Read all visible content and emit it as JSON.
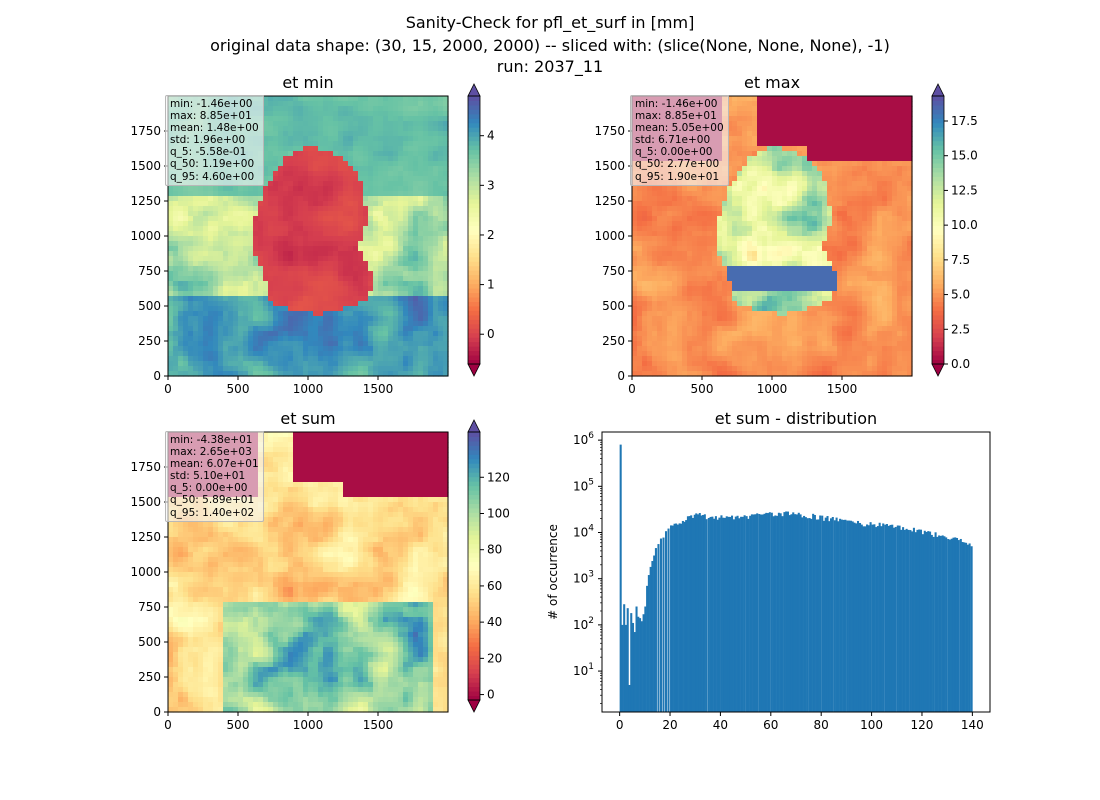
{
  "suptitle": {
    "line1": "Sanity-Check for pfl_et_surf in [mm]",
    "line2": "original data shape: (30, 15, 2000, 2000) -- sliced with: (slice(None, None, None), -1)",
    "line3": "run: 2037_11"
  },
  "colors": {
    "hist_bar": "#1f77b4",
    "spectral": [
      "#9e0142",
      "#d53e4f",
      "#f46d43",
      "#fdae61",
      "#fee08b",
      "#ffffbf",
      "#e6f598",
      "#abdda4",
      "#66c2a5",
      "#3288bd",
      "#5e4fa2"
    ],
    "ocean_tint": 0.82,
    "land_tint": 0.18
  },
  "chart_data": [
    {
      "type": "heatmap",
      "name": "et-min",
      "title": "et min",
      "xlim": [
        0,
        2000
      ],
      "ylim": [
        0,
        2000
      ],
      "xticks": [
        "0",
        "500",
        "1000",
        "1500"
      ],
      "yticks": [
        "0",
        "250",
        "500",
        "750",
        "1000",
        "1250",
        "1500",
        "1750"
      ],
      "colorbar": {
        "min": -0.6,
        "max": 4.8,
        "ticks": [
          0,
          1,
          2,
          3,
          4
        ],
        "ticklabels": [
          "0",
          "1",
          "2",
          "3",
          "4"
        ],
        "extend": "both"
      },
      "stats": [
        "min: -1.46e+00",
        "max: 8.85e+01",
        "mean: 1.48e+00",
        "std: 1.96e+00",
        "q_5: -5.58e-01",
        "q_50: 1.19e+00",
        "q_95: 4.60e+00"
      ],
      "pattern": "min"
    },
    {
      "type": "heatmap",
      "name": "et-max",
      "title": "et max",
      "xlim": [
        0,
        2000
      ],
      "ylim": [
        0,
        2000
      ],
      "xticks": [
        "0",
        "500",
        "1000",
        "1500"
      ],
      "yticks": [
        "0",
        "250",
        "500",
        "750",
        "1000",
        "1250",
        "1500",
        "1750"
      ],
      "colorbar": {
        "min": 0,
        "max": 19.3,
        "ticks": [
          0,
          2.5,
          5,
          7.5,
          10,
          12.5,
          15,
          17.5
        ],
        "ticklabels": [
          "0.0",
          "2.5",
          "5.0",
          "7.5",
          "10.0",
          "12.5",
          "15.0",
          "17.5"
        ],
        "extend": "both"
      },
      "stats": [
        "min: -1.46e+00",
        "max: 8.85e+01",
        "mean: 5.05e+00",
        "std: 6.71e+00",
        "q_5: 0.00e+00",
        "q_50: 2.77e+00",
        "q_95: 1.90e+01"
      ],
      "pattern": "max"
    },
    {
      "type": "heatmap",
      "name": "et-sum",
      "title": "et sum",
      "xlim": [
        0,
        2000
      ],
      "ylim": [
        0,
        2000
      ],
      "xticks": [
        "0",
        "500",
        "1000",
        "1500"
      ],
      "yticks": [
        "0",
        "250",
        "500",
        "750",
        "1000",
        "1250",
        "1500",
        "1750"
      ],
      "colorbar": {
        "min": -3,
        "max": 145,
        "ticks": [
          0,
          20,
          40,
          60,
          80,
          100,
          120
        ],
        "ticklabels": [
          "0",
          "20",
          "40",
          "60",
          "80",
          "100",
          "120"
        ],
        "extend": "both"
      },
      "stats": [
        "min: -4.38e+01",
        "max: 2.65e+03",
        "mean: 6.07e+01",
        "std: 5.10e+01",
        "q_5: 0.00e+00",
        "q_50: 5.89e+01",
        "q_95: 1.40e+02"
      ],
      "pattern": "sum"
    },
    {
      "type": "bar",
      "name": "et-sum-distribution",
      "title": "et sum - distribution",
      "xlabel": "",
      "ylabel": "# of occurrence",
      "xlim": [
        -7,
        147
      ],
      "ylim_log": [
        1.3,
        1500000
      ],
      "yscale": "log",
      "xticks": [
        0,
        20,
        40,
        60,
        80,
        100,
        120,
        140
      ],
      "xticklabels": [
        "0",
        "20",
        "40",
        "60",
        "80",
        "100",
        "120",
        "140"
      ],
      "yticks": [
        10,
        100,
        1000,
        10000,
        100000,
        1000000
      ],
      "ytick_exponents": [
        "1",
        "2",
        "3",
        "4",
        "5",
        "6"
      ],
      "bin_width": 0.7,
      "bins": [
        [
          0.0,
          800000
        ],
        [
          0.7,
          100
        ],
        [
          1.4,
          280
        ],
        [
          2.1,
          100
        ],
        [
          2.8,
          230
        ],
        [
          3.5,
          5
        ],
        [
          4.2,
          180
        ],
        [
          4.9,
          110
        ],
        [
          5.6,
          70
        ],
        [
          6.3,
          250
        ],
        [
          7.0,
          150
        ],
        [
          7.7,
          140
        ],
        [
          8.4,
          120
        ],
        [
          9.1,
          170
        ],
        [
          9.8,
          250
        ],
        [
          10.5,
          700
        ],
        [
          11.2,
          1200
        ],
        [
          11.9,
          1800
        ],
        [
          12.6,
          2500
        ],
        [
          13.3,
          3300
        ],
        [
          14.0,
          4200
        ],
        [
          15.0,
          5500
        ],
        [
          16.0,
          7000
        ],
        [
          17.0,
          8500
        ],
        [
          18.0,
          10000
        ],
        [
          19.0,
          11500
        ],
        [
          20.0,
          13000
        ],
        [
          22.0,
          15500
        ],
        [
          24.0,
          18000
        ],
        [
          26.0,
          20000
        ],
        [
          28.0,
          23000
        ],
        [
          30.0,
          24000
        ],
        [
          32.0,
          23000
        ],
        [
          35.0,
          21000
        ],
        [
          40.0,
          21000
        ],
        [
          45.0,
          21500
        ],
        [
          50.0,
          22000
        ],
        [
          55.0,
          24000
        ],
        [
          60.0,
          25000
        ],
        [
          65.0,
          26000
        ],
        [
          70.0,
          24000
        ],
        [
          75.0,
          23000
        ],
        [
          80.0,
          21000
        ],
        [
          85.0,
          19000
        ],
        [
          90.0,
          17000
        ],
        [
          95.0,
          16000
        ],
        [
          100.0,
          15000
        ],
        [
          105.0,
          14000
        ],
        [
          110.0,
          13000
        ],
        [
          115.0,
          12000
        ],
        [
          120.0,
          10500
        ],
        [
          125.0,
          9000
        ],
        [
          130.0,
          7500
        ],
        [
          135.0,
          6500
        ],
        [
          139.3,
          5000
        ]
      ]
    }
  ]
}
